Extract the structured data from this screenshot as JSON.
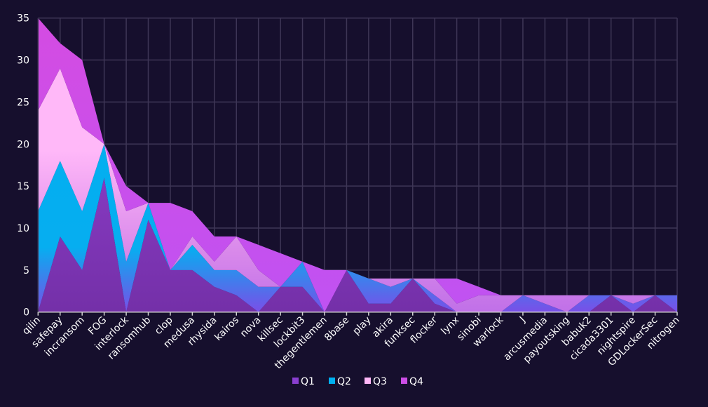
{
  "chart_data": {
    "type": "area",
    "stacked": true,
    "title": "",
    "xlabel": "",
    "ylabel": "",
    "ylim": [
      0,
      35
    ],
    "yticks": [
      0,
      5,
      10,
      15,
      20,
      25,
      30,
      35
    ],
    "grid": true,
    "legend_position": "bottom",
    "categories": [
      "qilin",
      "safepay",
      "incransom",
      "FOG",
      "interlock",
      "ransomhub",
      "clop",
      "medusa",
      "rhysida",
      "kairos",
      "nova",
      "killsec",
      "lockbit3",
      "thegentlemen",
      "8base",
      "play",
      "akira",
      "funksec",
      "flocker",
      "lynx",
      "sinobi",
      "warlock",
      "J",
      "arcusmedia",
      "payoutsking",
      "babuk2",
      "cicada3301",
      "nightspire",
      "GDLockerSec",
      "nitrogen"
    ],
    "series": [
      {
        "name": "Q1",
        "color": "#8a3fd0",
        "values": [
          0,
          9,
          5,
          16,
          0,
          11,
          5,
          5,
          3,
          2,
          0,
          3,
          3,
          0,
          5,
          1,
          1,
          4,
          1,
          0,
          0,
          0,
          0,
          0,
          0,
          0,
          2,
          0,
          2,
          0
        ]
      },
      {
        "name": "Q2",
        "color": "#00b0f0",
        "values": [
          12,
          9,
          7,
          4,
          6,
          2,
          0,
          3,
          2,
          3,
          3,
          0,
          3,
          0,
          0,
          3,
          2,
          0,
          1,
          0,
          0,
          0,
          2,
          1,
          0,
          2,
          0,
          1,
          0,
          2
        ]
      },
      {
        "name": "Q3",
        "color": "#ffb8f8",
        "values": [
          12,
          11,
          10,
          0,
          6,
          0,
          0,
          1,
          1,
          4,
          2,
          0,
          0,
          0,
          0,
          0,
          1,
          0,
          2,
          1,
          2,
          2,
          0,
          1,
          2,
          0,
          0,
          1,
          0,
          0
        ]
      },
      {
        "name": "Q4",
        "color": "#cc4ee6",
        "values": [
          11,
          3,
          8,
          0,
          3,
          0,
          8,
          3,
          3,
          0,
          3,
          4,
          0,
          5,
          0,
          0,
          0,
          0,
          0,
          3,
          1,
          0,
          0,
          0,
          0,
          0,
          0,
          0,
          0,
          0
        ]
      }
    ]
  }
}
